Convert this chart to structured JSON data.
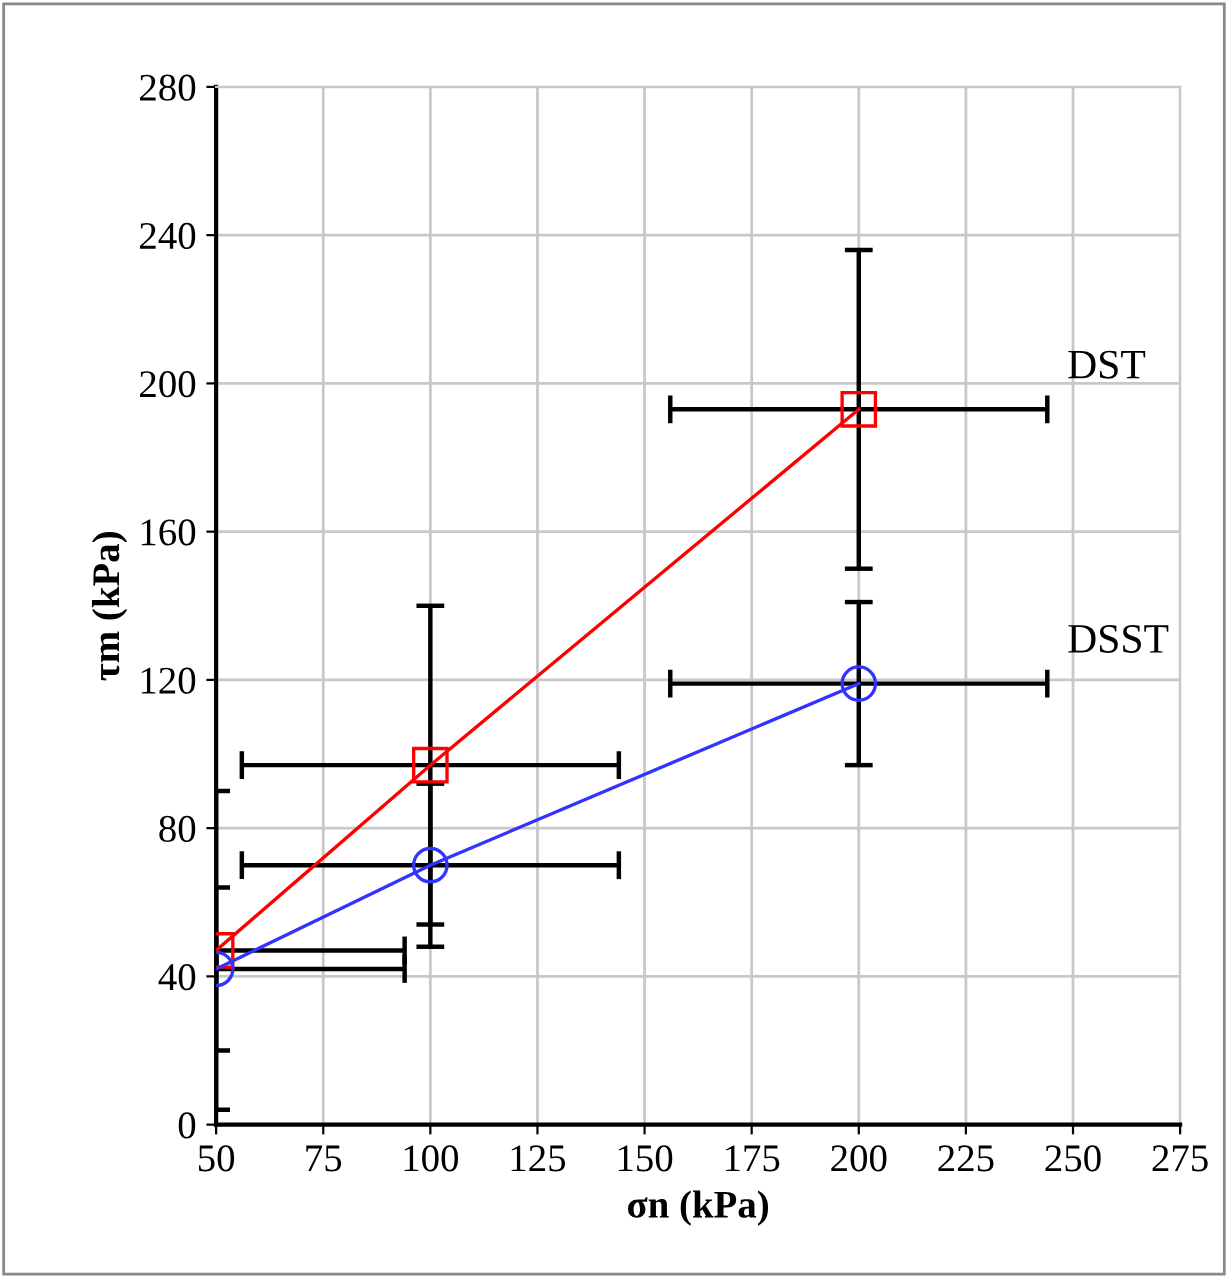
{
  "chart_data": {
    "type": "line",
    "xlabel": "σn (kPa)",
    "ylabel": "τm (kPa)",
    "x": [
      50,
      100,
      200
    ],
    "series": [
      {
        "name": "DST",
        "color": "#ff0000",
        "values": [
          47,
          97,
          193
        ],
        "marker": "square",
        "errors": [
          [
            4,
            90
          ],
          [
            54,
            140
          ],
          [
            150,
            236
          ]
        ],
        "xerrors": [
          [
            50,
            94
          ],
          [
            56,
            144
          ],
          [
            156,
            244
          ]
        ]
      },
      {
        "name": "DSST",
        "color": "#3333ff",
        "values": [
          42,
          70,
          119
        ],
        "marker": "circle",
        "errors": [
          [
            20,
            64
          ],
          [
            48,
            92
          ],
          [
            97,
            141
          ]
        ],
        "xerrors": [
          [
            50,
            94
          ],
          [
            56,
            144
          ],
          [
            156,
            244
          ]
        ]
      }
    ],
    "xlim": [
      50,
      275
    ],
    "xticks": [
      50,
      75,
      100,
      125,
      150,
      175,
      200,
      225,
      250,
      275
    ],
    "ylim": [
      0,
      280
    ],
    "yticks": [
      0,
      40,
      80,
      120,
      160,
      200,
      240,
      280
    ],
    "grid": true,
    "legend": false,
    "line_style": "solid"
  }
}
